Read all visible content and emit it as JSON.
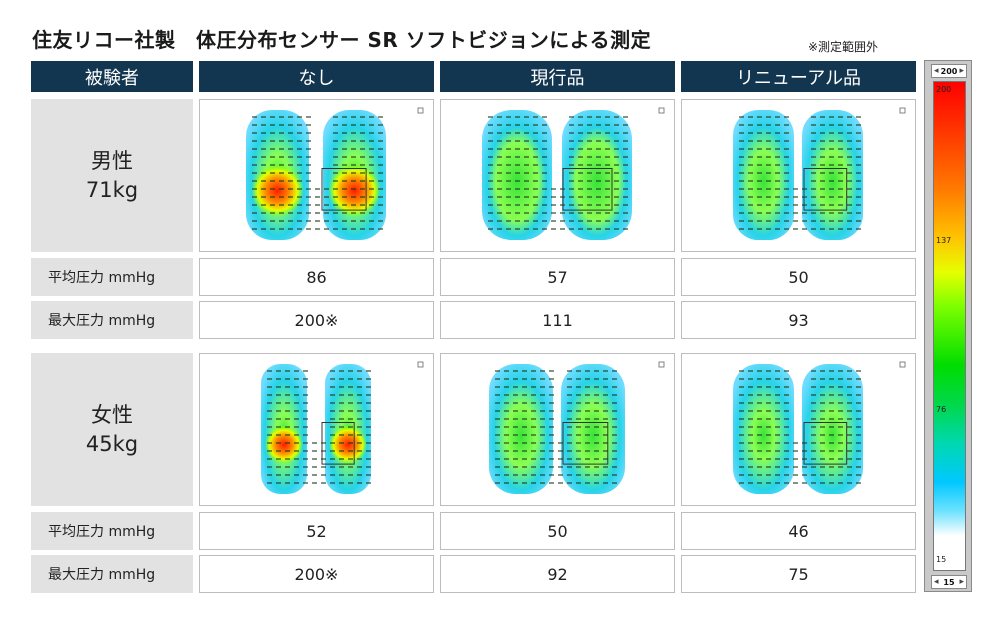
{
  "title": "住友リコー社製　体圧分布センサー SR ソフトビジョンによる測定",
  "note": "※測定範囲外",
  "headers": {
    "subject": "被験者",
    "col1": "なし",
    "col2": "現行品",
    "col3": "リニューアル品"
  },
  "rows": [
    {
      "subject": "男性\n71kg",
      "avg_label": "平均圧力 mmHg",
      "max_label": "最大圧力 mmHg",
      "avg": [
        "86",
        "57",
        "50"
      ],
      "max": [
        "200※",
        "111",
        "93"
      ]
    },
    {
      "subject": "女性\n45kg",
      "avg_label": "平均圧力 mmHg",
      "max_label": "最大圧力 mmHg",
      "avg": [
        "52",
        "50",
        "46"
      ],
      "max": [
        "200※",
        "92",
        "75"
      ]
    }
  ],
  "legend": {
    "top_value": "200",
    "bottom_value": "15",
    "ticks": [
      "200",
      "137",
      "76",
      "15"
    ]
  },
  "colors": {
    "header_bg": "#123650",
    "label_bg": "#e2e2e2"
  }
}
